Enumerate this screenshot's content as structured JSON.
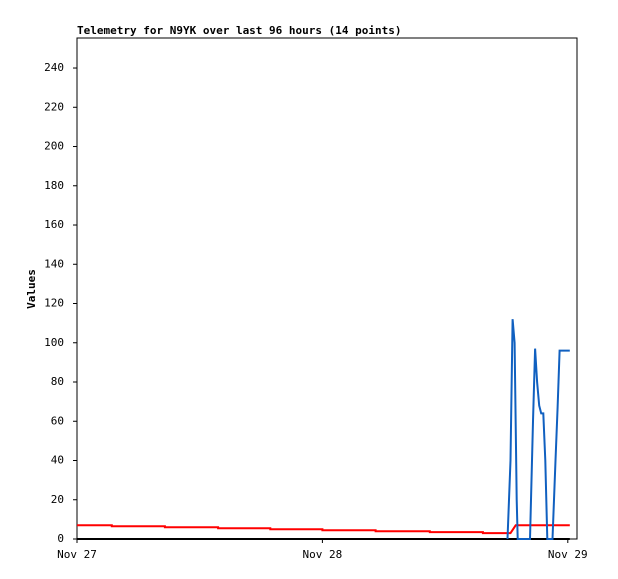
{
  "chart_data": {
    "type": "line",
    "title": "Telemetry for N9YK over last 96 hours (14 points)",
    "y_label": "Values",
    "xlim": [
      0,
      48.9
    ],
    "ylim": [
      0,
      255.3
    ],
    "xticks": [
      {
        "value": 0,
        "label": "Nov 27"
      },
      {
        "value": 24,
        "label": "Nov 28"
      },
      {
        "value": 48,
        "label": "Nov 29"
      }
    ],
    "yticks": [
      0,
      20,
      40,
      60,
      80,
      100,
      120,
      140,
      160,
      180,
      200,
      220,
      240
    ],
    "series": [
      {
        "color": "#000000",
        "x": [
          0,
          48.2
        ],
        "values": [
          0,
          0
        ]
      },
      {
        "color": "#ff0000",
        "x": [
          0,
          3.4,
          3.4,
          8.6,
          8.6,
          13.8,
          13.8,
          18.9,
          18.9,
          24,
          24,
          29.2,
          29.2,
          34.5,
          34.5,
          39.7,
          39.7,
          42.4,
          42.9,
          48.2
        ],
        "values": [
          7,
          7,
          6.5,
          6.5,
          6,
          6,
          5.5,
          5.5,
          5,
          5,
          4.5,
          4.5,
          4,
          4,
          3.5,
          3.5,
          3,
          3,
          7,
          7
        ]
      },
      {
        "color": "#1060c0",
        "x": [
          42.1,
          42.4,
          42.6,
          42.8,
          43.0,
          43.1,
          44.3,
          44.6,
          44.8,
          45.0,
          45.2,
          45.4,
          45.6,
          45.8,
          46.0,
          46.5,
          46.8,
          47.0,
          47.2,
          48.2
        ],
        "values": [
          0,
          40,
          112,
          100,
          20,
          0,
          0,
          60,
          97,
          80,
          68,
          64,
          64,
          40,
          0,
          0,
          40,
          67,
          96,
          96
        ]
      }
    ]
  }
}
